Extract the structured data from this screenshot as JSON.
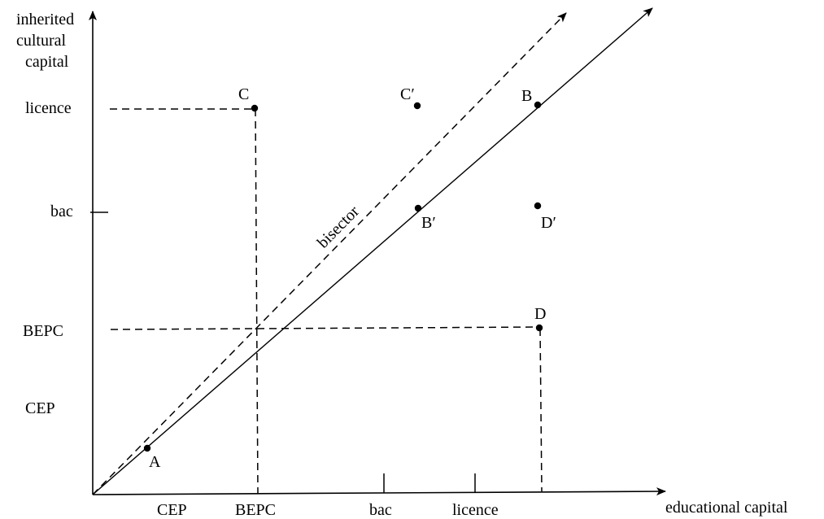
{
  "axes": {
    "y_label_lines": [
      "inherited",
      "cultural",
      "capital"
    ],
    "x_label": "educational capital",
    "y_ticks": [
      "licence",
      "bac",
      "BEPC",
      "CEP"
    ],
    "x_ticks": [
      "CEP",
      "BEPC",
      "bac",
      "licence"
    ]
  },
  "bisector_label": "bisector",
  "points": {
    "A": "A",
    "B": "B",
    "B_prime": "B′",
    "C": "C",
    "C_prime": "C′",
    "D": "D",
    "D_prime": "D′"
  }
}
